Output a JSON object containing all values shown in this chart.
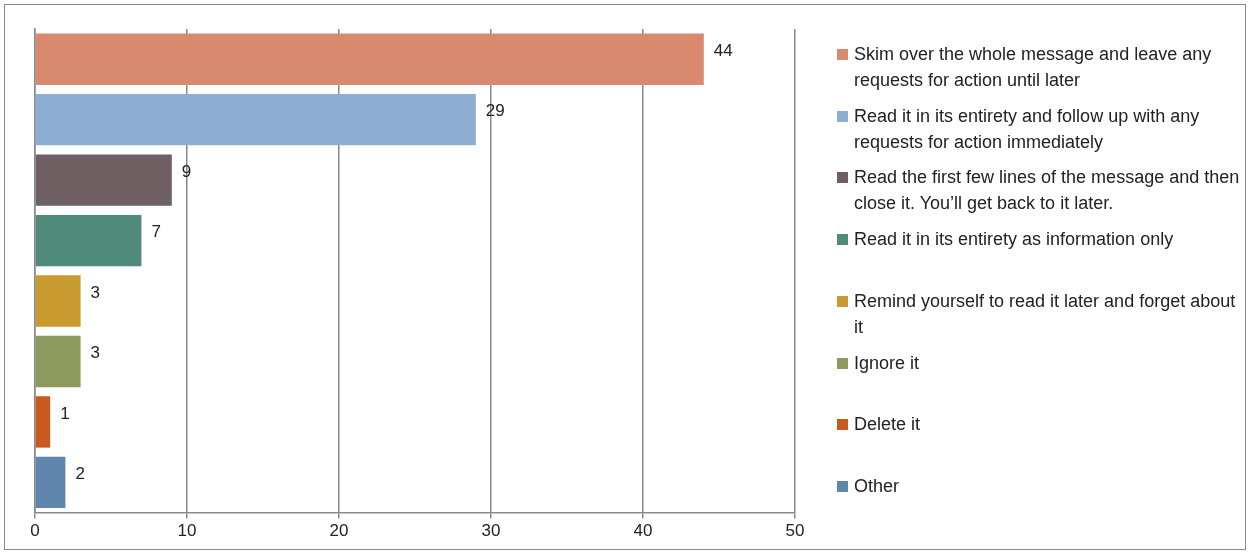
{
  "chart_data": {
    "type": "bar",
    "orientation": "horizontal",
    "categories": [
      null,
      null,
      null,
      null,
      null,
      null,
      null,
      null
    ],
    "series": [
      {
        "name": "Skim over the whole message and leave any requests for action until later",
        "color": "#d98a6e",
        "values": [
          44,
          null,
          null,
          null,
          null,
          null,
          null,
          null
        ]
      },
      {
        "name": "Read it in its entirety and follow up with any requests for action immediately",
        "color": "#8eadd2",
        "values": [
          null,
          29,
          null,
          null,
          null,
          null,
          null,
          null
        ]
      },
      {
        "name": "Read the first few lines of the message and then close it. You’ll get back to it later.",
        "color": "#6e5f63",
        "values": [
          null,
          null,
          9,
          null,
          null,
          null,
          null,
          null
        ]
      },
      {
        "name": "Read it in its entirety as information only",
        "color": "#4f8a7a",
        "values": [
          null,
          null,
          null,
          7,
          null,
          null,
          null,
          null
        ]
      },
      {
        "name": "Remind yourself to read it later and forget about it",
        "color": "#c89a30",
        "values": [
          null,
          null,
          null,
          null,
          3,
          null,
          null,
          null
        ]
      },
      {
        "name": "Ignore it",
        "color": "#8c9a5e",
        "values": [
          null,
          null,
          null,
          null,
          null,
          3,
          null,
          null
        ]
      },
      {
        "name": "Delete it",
        "color": "#c85a20",
        "values": [
          null,
          null,
          null,
          null,
          null,
          null,
          1,
          null
        ]
      },
      {
        "name": "Other",
        "color": "#5f86ad",
        "values": [
          null,
          null,
          null,
          null,
          null,
          null,
          null,
          2
        ]
      }
    ],
    "xlim": [
      0,
      50
    ],
    "xticks": [
      0,
      10,
      20,
      30,
      40,
      50
    ],
    "grid": "x",
    "legend": "right",
    "data_labels": true,
    "tick_labels": "x"
  }
}
